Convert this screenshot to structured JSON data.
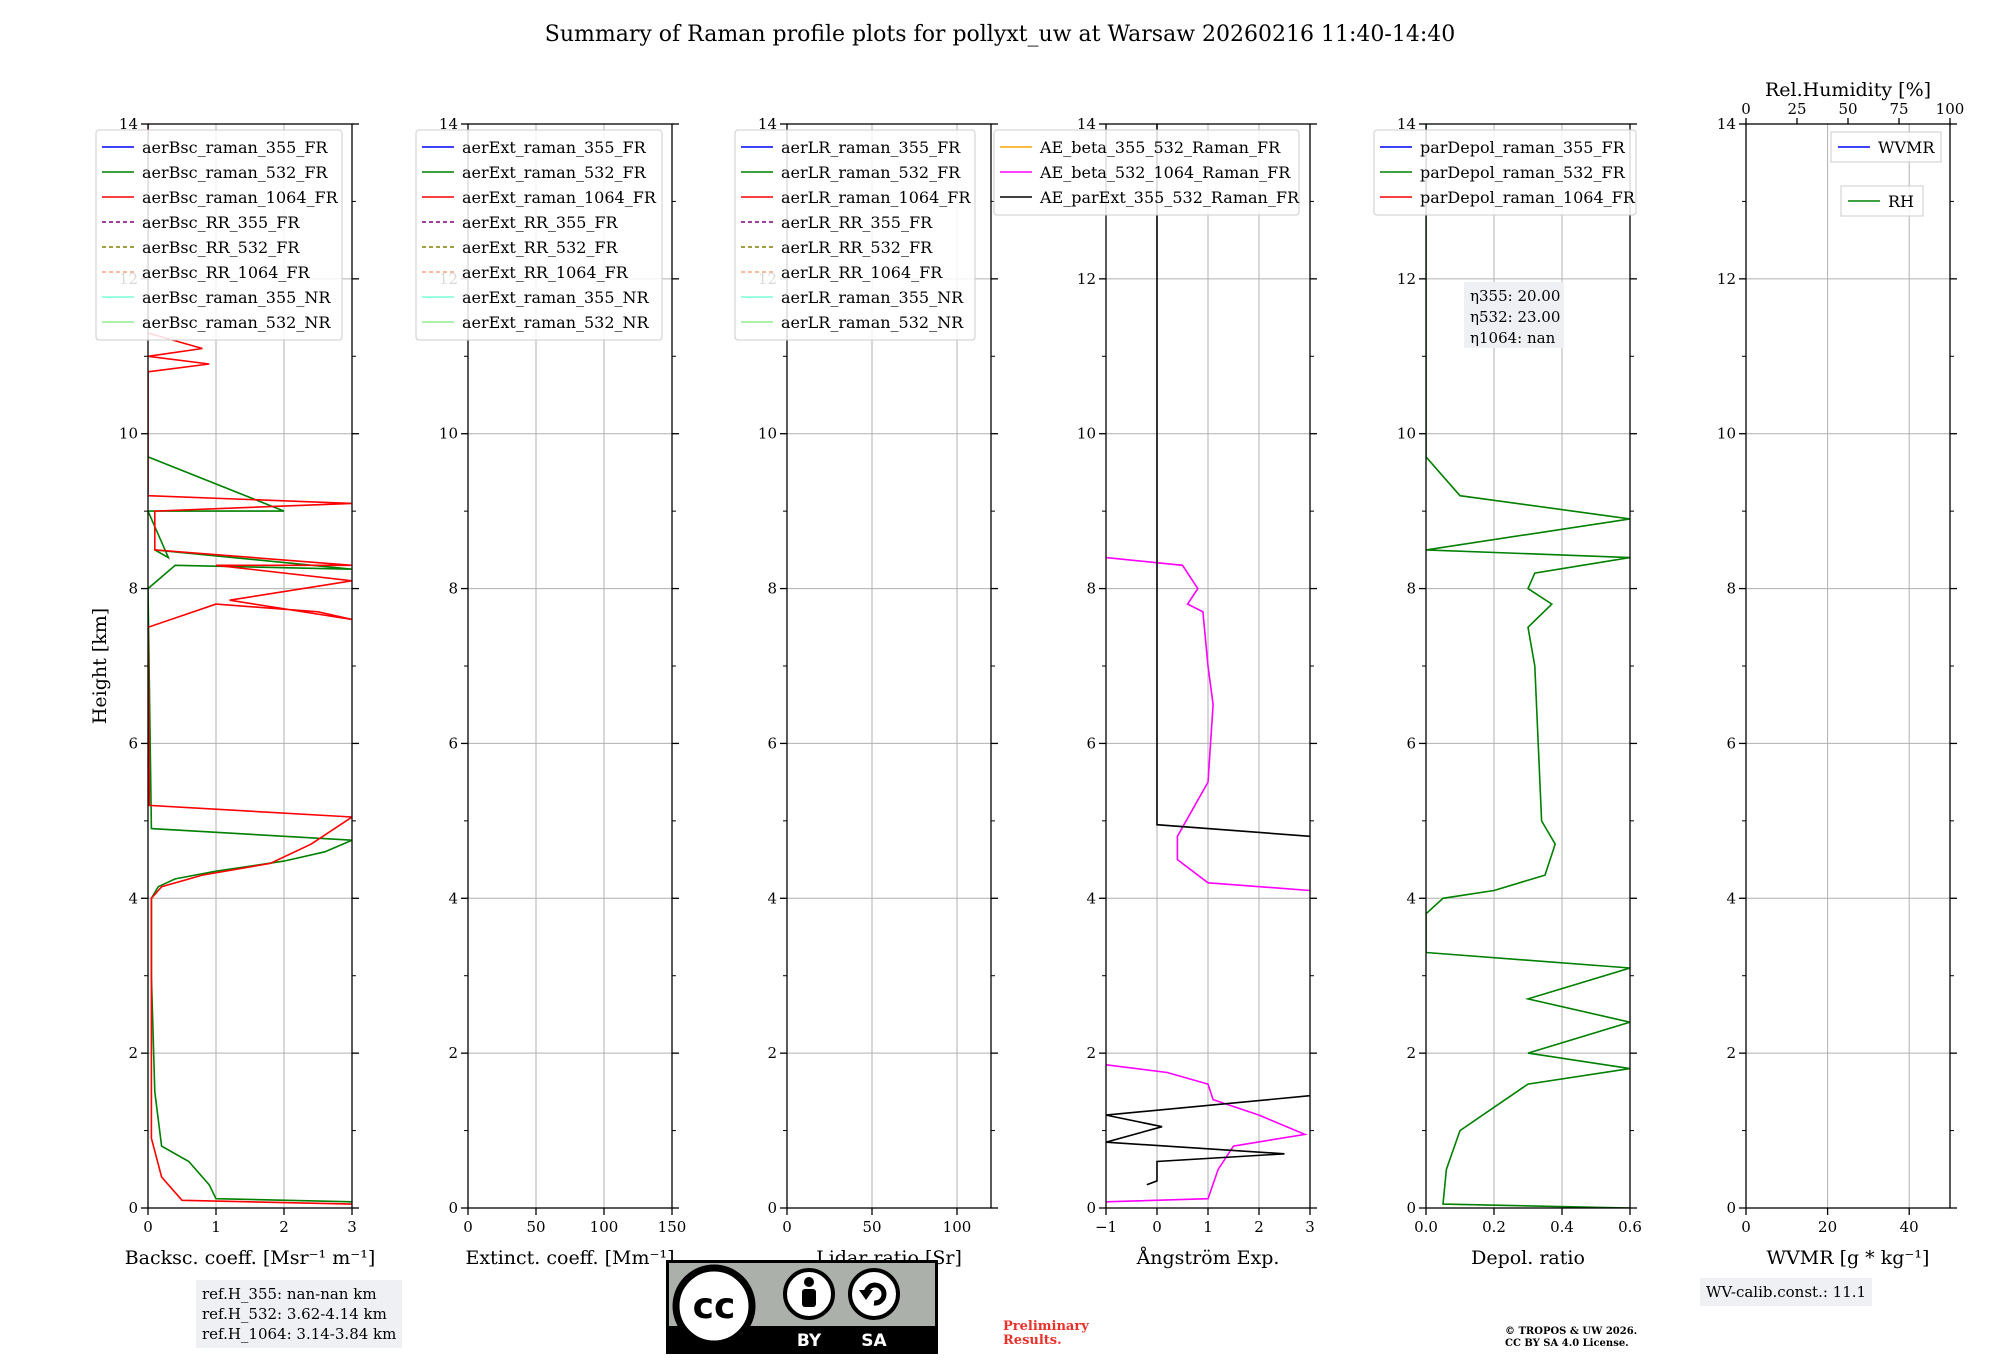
{
  "title": "Summary of Raman profile plots for pollyxt_uw at Warsaw 20260216 11:40-14:40",
  "shared": {
    "ylabel": "Height [km]",
    "ylim": [
      0,
      14
    ],
    "yticks": [
      0,
      2,
      4,
      6,
      8,
      10,
      12,
      14
    ]
  },
  "chart_data": [
    {
      "type": "line",
      "id": "bsc",
      "xlabel": "Backsc. coeff. [Msr⁻¹ m⁻¹]",
      "xlim": [
        0,
        3
      ],
      "xticks": [
        0,
        1,
        2,
        3
      ],
      "legend": [
        {
          "label": "aerBsc_raman_355_FR",
          "color": "#0000ff",
          "dash": false
        },
        {
          "label": "aerBsc_raman_532_FR",
          "color": "#008000",
          "dash": false
        },
        {
          "label": "aerBsc_raman_1064_FR",
          "color": "#ff0000",
          "dash": false
        },
        {
          "label": "aerBsc_RR_355_FR",
          "color": "#800080",
          "dash": true
        },
        {
          "label": "aerBsc_RR_532_FR",
          "color": "#808000",
          "dash": true
        },
        {
          "label": "aerBsc_RR_1064_FR",
          "color": "#ffa07a",
          "dash": true
        },
        {
          "label": "aerBsc_raman_355_NR",
          "color": "#7fffd4",
          "dash": false
        },
        {
          "label": "aerBsc_raman_532_NR",
          "color": "#90ee90",
          "dash": false
        }
      ],
      "series": [
        {
          "name": "aerBsc_raman_532_FR",
          "color": "#008000",
          "points": [
            [
              3.0,
              0.08
            ],
            [
              1.0,
              0.12
            ],
            [
              0.9,
              0.3
            ],
            [
              0.6,
              0.6
            ],
            [
              0.2,
              0.8
            ],
            [
              0.1,
              1.5
            ],
            [
              0.05,
              3.0
            ],
            [
              0.05,
              4.0
            ],
            [
              0.15,
              4.15
            ],
            [
              0.4,
              4.25
            ],
            [
              1.0,
              4.35
            ],
            [
              2.0,
              4.48
            ],
            [
              2.6,
              4.6
            ],
            [
              3.0,
              4.75
            ],
            [
              0.05,
              4.9
            ],
            [
              0.0,
              8.0
            ],
            [
              0.4,
              8.3
            ],
            [
              3.0,
              8.25
            ],
            [
              0.1,
              8.5
            ],
            [
              0.3,
              8.4
            ],
            [
              0.0,
              9.0
            ],
            [
              2.0,
              9.0
            ],
            [
              0.0,
              9.7
            ]
          ]
        },
        {
          "name": "aerBsc_raman_1064_FR",
          "color": "#ff0000",
          "points": [
            [
              3.0,
              0.05
            ],
            [
              0.5,
              0.1
            ],
            [
              0.2,
              0.4
            ],
            [
              0.05,
              0.9
            ],
            [
              0.05,
              4.0
            ],
            [
              0.2,
              4.15
            ],
            [
              0.8,
              4.3
            ],
            [
              1.8,
              4.45
            ],
            [
              2.4,
              4.7
            ],
            [
              3.0,
              5.05
            ],
            [
              0.02,
              5.2
            ],
            [
              0.0,
              7.5
            ],
            [
              1.0,
              7.8
            ],
            [
              2.5,
              7.7
            ],
            [
              3.0,
              7.6
            ],
            [
              1.2,
              7.85
            ],
            [
              3.0,
              8.1
            ],
            [
              1.0,
              8.3
            ],
            [
              3.0,
              8.3
            ],
            [
              0.1,
              8.5
            ],
            [
              0.1,
              9.0
            ],
            [
              3.0,
              9.1
            ],
            [
              0.0,
              9.2
            ],
            [
              0.0,
              10.8
            ],
            [
              0.9,
              10.9
            ],
            [
              0.0,
              11.0
            ],
            [
              0.8,
              11.1
            ],
            [
              0.0,
              11.3
            ],
            [
              0.0,
              14.0
            ]
          ]
        }
      ]
    },
    {
      "type": "line",
      "id": "ext",
      "xlabel": "Extinct. coeff. [Mm⁻¹]",
      "xlim": [
        0,
        150
      ],
      "xticks": [
        0,
        50,
        100,
        150
      ],
      "legend": [
        {
          "label": "aerExt_raman_355_FR",
          "color": "#0000ff",
          "dash": false
        },
        {
          "label": "aerExt_raman_532_FR",
          "color": "#008000",
          "dash": false
        },
        {
          "label": "aerExt_raman_1064_FR",
          "color": "#ff0000",
          "dash": false
        },
        {
          "label": "aerExt_RR_355_FR",
          "color": "#800080",
          "dash": true
        },
        {
          "label": "aerExt_RR_532_FR",
          "color": "#808000",
          "dash": true
        },
        {
          "label": "aerExt_RR_1064_FR",
          "color": "#ffa07a",
          "dash": true
        },
        {
          "label": "aerExt_raman_355_NR",
          "color": "#7fffd4",
          "dash": false
        },
        {
          "label": "aerExt_raman_532_NR",
          "color": "#90ee90",
          "dash": false
        }
      ],
      "series": []
    },
    {
      "type": "line",
      "id": "lr",
      "xlabel": "Lidar ratio [Sr]",
      "xlim": [
        0,
        120
      ],
      "xticks": [
        0,
        50,
        100
      ],
      "legend": [
        {
          "label": "aerLR_raman_355_FR",
          "color": "#0000ff",
          "dash": false
        },
        {
          "label": "aerLR_raman_532_FR",
          "color": "#008000",
          "dash": false
        },
        {
          "label": "aerLR_raman_1064_FR",
          "color": "#ff0000",
          "dash": false
        },
        {
          "label": "aerLR_RR_355_FR",
          "color": "#800080",
          "dash": true
        },
        {
          "label": "aerLR_RR_532_FR",
          "color": "#808000",
          "dash": true
        },
        {
          "label": "aerLR_RR_1064_FR",
          "color": "#ffa07a",
          "dash": true
        },
        {
          "label": "aerLR_raman_355_NR",
          "color": "#7fffd4",
          "dash": false
        },
        {
          "label": "aerLR_raman_532_NR",
          "color": "#90ee90",
          "dash": false
        }
      ],
      "series": []
    },
    {
      "type": "line",
      "id": "ae",
      "xlabel": "Ångström Exp.",
      "xlim": [
        -1,
        3
      ],
      "xticks": [
        -1,
        0,
        1,
        2,
        3
      ],
      "legend": [
        {
          "label": "AE_beta_355_532_Raman_FR",
          "color": "#ffa500",
          "dash": false
        },
        {
          "label": "AE_beta_532_1064_Raman_FR",
          "color": "#ff00ff",
          "dash": false
        },
        {
          "label": "AE_parExt_355_532_Raman_FR",
          "color": "#000000",
          "dash": false
        }
      ],
      "series": [
        {
          "name": "AE_beta_532_1064_Raman_FR",
          "color": "#ff00ff",
          "points": [
            [
              -1.0,
              0.08
            ],
            [
              1.0,
              0.12
            ],
            [
              1.2,
              0.5
            ],
            [
              1.5,
              0.8
            ],
            [
              2.9,
              0.95
            ],
            [
              2.0,
              1.2
            ],
            [
              1.1,
              1.4
            ],
            [
              1.0,
              1.6
            ],
            [
              0.2,
              1.75
            ],
            [
              -1.0,
              1.85
            ]
          ]
        },
        {
          "name": "AE_beta_532_1064_Raman_FR_mid",
          "color": "#ff00ff",
          "points": [
            [
              3.0,
              4.1
            ],
            [
              1.0,
              4.2
            ],
            [
              0.4,
              4.5
            ],
            [
              0.4,
              4.8
            ],
            [
              1.0,
              5.5
            ],
            [
              1.1,
              6.5
            ],
            [
              1.0,
              7.0
            ],
            [
              0.9,
              7.7
            ],
            [
              0.6,
              7.8
            ],
            [
              0.8,
              8.0
            ],
            [
              0.5,
              8.3
            ],
            [
              -1.0,
              8.4
            ]
          ]
        },
        {
          "name": "AE_parExt_355_532_Raman_FR",
          "color": "#000000",
          "points": [
            [
              -0.2,
              0.3
            ],
            [
              0.0,
              0.35
            ],
            [
              0.0,
              0.6
            ],
            [
              2.5,
              0.7
            ],
            [
              -1.0,
              0.85
            ],
            [
              0.1,
              1.05
            ],
            [
              -1.0,
              1.2
            ],
            [
              3.0,
              1.45
            ]
          ]
        },
        {
          "name": "AE_parExt_355_532_Raman_FR_upper",
          "color": "#000000",
          "points": [
            [
              3.0,
              4.8
            ],
            [
              0.0,
              4.95
            ],
            [
              0.0,
              14.0
            ]
          ]
        }
      ]
    },
    {
      "type": "line",
      "id": "depol",
      "xlabel": "Depol. ratio",
      "xlim": [
        0,
        0.6
      ],
      "xticks": [
        0.0,
        0.2,
        0.4,
        0.6
      ],
      "legend": [
        {
          "label": "parDepol_raman_355_FR",
          "color": "#0000ff",
          "dash": false
        },
        {
          "label": "parDepol_raman_532_FR",
          "color": "#008000",
          "dash": false
        },
        {
          "label": "parDepol_raman_1064_FR",
          "color": "#ff0000",
          "dash": false
        }
      ],
      "annotation": [
        "η355: 20.00",
        "η532: 23.00",
        "η1064: nan"
      ],
      "series": [
        {
          "name": "parDepol_raman_532_FR",
          "color": "#008000",
          "points": [
            [
              0.6,
              0.0
            ],
            [
              0.05,
              0.05
            ],
            [
              0.06,
              0.5
            ],
            [
              0.1,
              1.0
            ],
            [
              0.2,
              1.3
            ],
            [
              0.3,
              1.6
            ],
            [
              0.6,
              1.8
            ],
            [
              0.3,
              2.0
            ],
            [
              0.6,
              2.4
            ],
            [
              0.3,
              2.7
            ],
            [
              0.6,
              3.1
            ],
            [
              0.0,
              3.3
            ],
            [
              0.0,
              3.8
            ],
            [
              0.05,
              4.0
            ],
            [
              0.2,
              4.1
            ],
            [
              0.35,
              4.3
            ],
            [
              0.38,
              4.7
            ],
            [
              0.34,
              5.0
            ],
            [
              0.33,
              6.0
            ],
            [
              0.32,
              7.0
            ],
            [
              0.3,
              7.5
            ],
            [
              0.37,
              7.8
            ],
            [
              0.3,
              8.0
            ],
            [
              0.32,
              8.2
            ],
            [
              0.6,
              8.4
            ],
            [
              0.0,
              8.5
            ],
            [
              0.6,
              8.9
            ],
            [
              0.1,
              9.2
            ],
            [
              0.0,
              9.7
            ],
            [
              0.0,
              14.0
            ]
          ]
        }
      ]
    },
    {
      "type": "line",
      "id": "wv",
      "xlabel": "WVMR [g * kg⁻¹]",
      "xlim": [
        0,
        50
      ],
      "xticks": [
        0,
        20,
        40
      ],
      "top_axis_label": "Rel.Humidity [%]",
      "top_xlim": [
        0,
        100
      ],
      "top_xticks": [
        0,
        25,
        50,
        75,
        100
      ],
      "legend": [
        {
          "label": "WVMR",
          "color": "#0000ff",
          "dash": false
        },
        {
          "label": "RH",
          "color": "#008000",
          "dash": false
        }
      ],
      "series": []
    }
  ],
  "ref_box": [
    "ref.H_355: nan-nan km",
    "ref.H_532: 3.62-4.14 km",
    "ref.H_1064: 3.14-3.84 km"
  ],
  "wv_calib": "WV-calib.const.: 11.1",
  "license_badge": {
    "left": "BY",
    "right": "SA"
  },
  "preliminary": [
    "Preliminary",
    "Results."
  ],
  "copyright": [
    "© TROPOS & UW 2026.",
    "CC BY SA 4.0 License."
  ]
}
